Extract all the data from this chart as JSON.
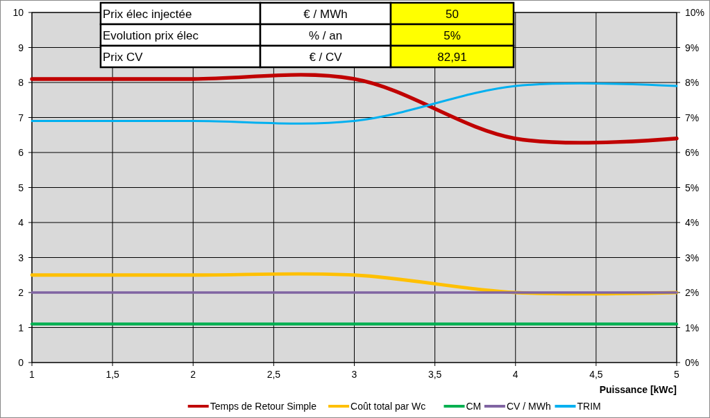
{
  "chart_data": {
    "type": "line",
    "xlabel": "Puissance [kWc]",
    "x": [
      1,
      2,
      3,
      4,
      5
    ],
    "xlim": [
      1,
      5
    ],
    "xticks": [
      1,
      {
        "value": 1.5,
        "label": "1,5"
      },
      2,
      {
        "value": 2.5,
        "label": "2,5"
      },
      3,
      {
        "value": 3.5,
        "label": "3,5"
      },
      4,
      {
        "value": 4.5,
        "label": "4,5"
      },
      5
    ],
    "ylim": [
      0,
      10
    ],
    "yticks": [
      0,
      1,
      2,
      3,
      4,
      5,
      6,
      7,
      8,
      9,
      10
    ],
    "y2lim": [
      0,
      10
    ],
    "y2ticks": [
      {
        "value": 0,
        "label": "0%"
      },
      {
        "value": 1,
        "label": "1%"
      },
      {
        "value": 2,
        "label": "2%"
      },
      {
        "value": 3,
        "label": "3%"
      },
      {
        "value": 4,
        "label": "4%"
      },
      {
        "value": 5,
        "label": "5%"
      },
      {
        "value": 6,
        "label": "6%"
      },
      {
        "value": 7,
        "label": "7%"
      },
      {
        "value": 8,
        "label": "8%"
      },
      {
        "value": 9,
        "label": "9%"
      },
      {
        "value": 10,
        "label": "10%"
      }
    ],
    "series": [
      {
        "name": "Temps de Retour Simple",
        "color": "#c00000",
        "values": [
          8.1,
          8.1,
          8.1,
          6.4,
          6.4
        ]
      },
      {
        "name": "Coût total par Wc",
        "color": "#ffc000",
        "values": [
          2.5,
          2.5,
          2.5,
          2.0,
          2.0
        ]
      },
      {
        "name": "CM",
        "color": "#00b050",
        "values": [
          1.1,
          1.1,
          1.1,
          1.1,
          1.1
        ]
      },
      {
        "name": "CV / MWh",
        "color": "#8064a2",
        "values": [
          2.0,
          2.0,
          2.0,
          2.0,
          2.0
        ]
      },
      {
        "name": "TRIM",
        "color": "#00b0f0",
        "values": [
          6.9,
          6.9,
          6.9,
          7.9,
          7.9
        ],
        "axis": "y2"
      }
    ],
    "annotations": [
      "Prix élec injectée",
      "€ / MWh",
      "50",
      "Evolution prix élec",
      "% / an",
      "5%",
      "Prix CV",
      "€ / CV",
      "82,91"
    ],
    "grid": true,
    "legend": "bottom",
    "marker": "none",
    "line_style": "solid"
  }
}
